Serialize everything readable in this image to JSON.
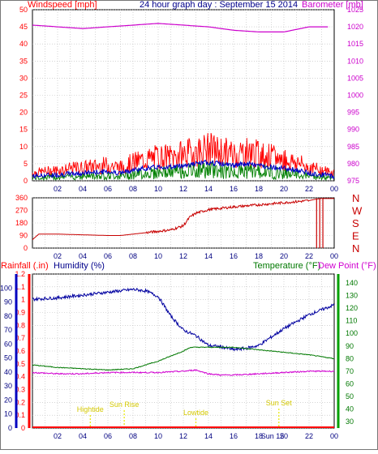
{
  "header": {
    "left_label": "Windspeed [mph]",
    "center_title": "24 hour graph day : September 15 2014",
    "right_label": "Barometer [mb]"
  },
  "lower_header": {
    "rain_label": "Rainfall (.in)",
    "humidity_label": "Humidity (%)",
    "temp_label": "Temperature (°F)",
    "dew_label": "Dew Point (°F)"
  },
  "wind_dir_letters": [
    "N",
    "W",
    "S",
    "E",
    "N"
  ],
  "events": [
    {
      "label": "Sun Rise",
      "hour": 7.3
    },
    {
      "label": "Hightide",
      "hour": 4.6
    },
    {
      "label": "Lowtide",
      "hour": 13.0
    },
    {
      "label": "Sun Set",
      "hour": 19.6
    }
  ],
  "sun_marker": "Sun 15",
  "colors": {
    "wind": "#ff0000",
    "gust_avg": "#0000c8",
    "wind_low": "#008000",
    "baro": "#cc00cc",
    "dir": "#c80000",
    "humidity": "#0000a0",
    "temp": "#007800",
    "dew": "#d000d0",
    "rain": "#ff0000",
    "event": "#e8e800"
  },
  "chart_data": [
    {
      "type": "line",
      "title": "24 hour graph day : September 15 2014",
      "x_ticks": [
        "02",
        "04",
        "06",
        "08",
        "10",
        "12",
        "14",
        "16",
        "18",
        "20",
        "22",
        "00"
      ],
      "y_left": {
        "label": "Windspeed [mph]",
        "ticks": [
          0,
          5,
          10,
          15,
          20,
          25,
          30,
          35,
          40,
          45,
          50
        ],
        "ylim": [
          0,
          50
        ]
      },
      "y_right": {
        "label": "Barometer [mb]",
        "ticks": [
          975,
          980,
          985,
          990,
          995,
          1000,
          1005,
          1010,
          1015,
          1020,
          1025
        ],
        "ylim": [
          975,
          1025
        ]
      },
      "series": [
        {
          "name": "Windspeed",
          "hours": [
            0,
            2,
            4,
            6,
            7,
            8,
            9,
            10,
            11,
            12,
            13,
            14,
            15,
            16,
            17,
            18,
            19,
            20,
            21,
            22,
            23,
            24
          ],
          "values": [
            3,
            4,
            5,
            6,
            5,
            7,
            8,
            9,
            9,
            10,
            11,
            12,
            11,
            10,
            11,
            10,
            9,
            8,
            7,
            5,
            4,
            3
          ]
        },
        {
          "name": "Barometer",
          "hours": [
            0,
            2,
            4,
            6,
            8,
            10,
            12,
            14,
            16,
            18,
            20,
            22,
            23.5
          ],
          "values": [
            1020.5,
            1020,
            1019.5,
            1020,
            1020.5,
            1021,
            1020.5,
            1020,
            1019,
            1018.5,
            1018.5,
            1020,
            1020
          ]
        }
      ],
      "grid": true
    },
    {
      "type": "line",
      "x_ticks": [
        "02",
        "04",
        "06",
        "08",
        "10",
        "12",
        "14",
        "16",
        "18",
        "20",
        "22",
        "00"
      ],
      "y_left": {
        "ticks": [
          0,
          90,
          180,
          270,
          360
        ],
        "ylim": [
          0,
          360
        ]
      },
      "y_right": {
        "ticks": [
          "N",
          "W",
          "S",
          "E",
          "N"
        ]
      },
      "series": [
        {
          "name": "Wind direction",
          "hours": [
            0,
            0.5,
            2,
            6,
            7,
            8,
            9,
            10,
            11,
            12,
            12.5,
            13,
            14,
            16,
            18,
            20,
            22,
            22.5,
            23,
            24
          ],
          "values": [
            60,
            100,
            100,
            90,
            90,
            100,
            110,
            120,
            130,
            160,
            220,
            250,
            275,
            295,
            310,
            325,
            340,
            350,
            355,
            355
          ]
        }
      ],
      "grid": true
    },
    {
      "type": "line",
      "x_ticks": [
        "02",
        "04",
        "06",
        "08",
        "10",
        "12",
        "14",
        "16",
        "18",
        "20",
        "22",
        "00"
      ],
      "y_left_rain": {
        "label": "Rainfall (.in)",
        "ticks": [
          0,
          0.1,
          0.2,
          0.3,
          0.4,
          0.5,
          0.6,
          0.7,
          0.8,
          0.9,
          1,
          1.1,
          1.2
        ],
        "ylim": [
          0,
          1.2
        ]
      },
      "y_left_humidity": {
        "label": "Humidity (%)",
        "ticks": [
          0,
          10,
          20,
          30,
          40,
          50,
          60,
          70,
          80,
          90,
          100
        ],
        "ylim": [
          0,
          110
        ]
      },
      "y_right": {
        "label": "Temperature (°F)",
        "ticks": [
          30,
          40,
          50,
          60,
          70,
          80,
          90,
          100,
          110,
          120,
          130,
          140
        ],
        "ylim": [
          25,
          147
        ]
      },
      "series": [
        {
          "name": "Humidity",
          "hours": [
            0,
            2,
            4,
            6,
            7,
            8,
            9,
            10,
            11,
            12,
            12.5,
            13,
            14,
            15,
            16,
            17,
            18,
            20,
            22,
            24
          ],
          "values": [
            92,
            93,
            95,
            97,
            98,
            99,
            98,
            94,
            80,
            70,
            68,
            66,
            59,
            58,
            56,
            57,
            59,
            71,
            81,
            88
          ]
        },
        {
          "name": "Temperature",
          "hours": [
            0,
            2,
            4,
            6,
            8,
            10,
            12,
            12.6,
            14,
            16,
            18,
            20,
            22,
            24
          ],
          "values": [
            75,
            73,
            72,
            71,
            72,
            78,
            86,
            89,
            89,
            89,
            87,
            85,
            83,
            80
          ]
        },
        {
          "name": "Dew Point",
          "hours": [
            0,
            2,
            4,
            6,
            8,
            10,
            12,
            13,
            14,
            15,
            16,
            18,
            20,
            22,
            24
          ],
          "values": [
            69,
            68,
            68,
            69,
            69,
            69,
            70,
            71,
            68,
            67,
            67,
            68,
            69,
            70,
            70
          ]
        },
        {
          "name": "Rainfall",
          "hours": [
            0,
            24
          ],
          "values": [
            0,
            0
          ]
        }
      ],
      "grid": true
    }
  ]
}
